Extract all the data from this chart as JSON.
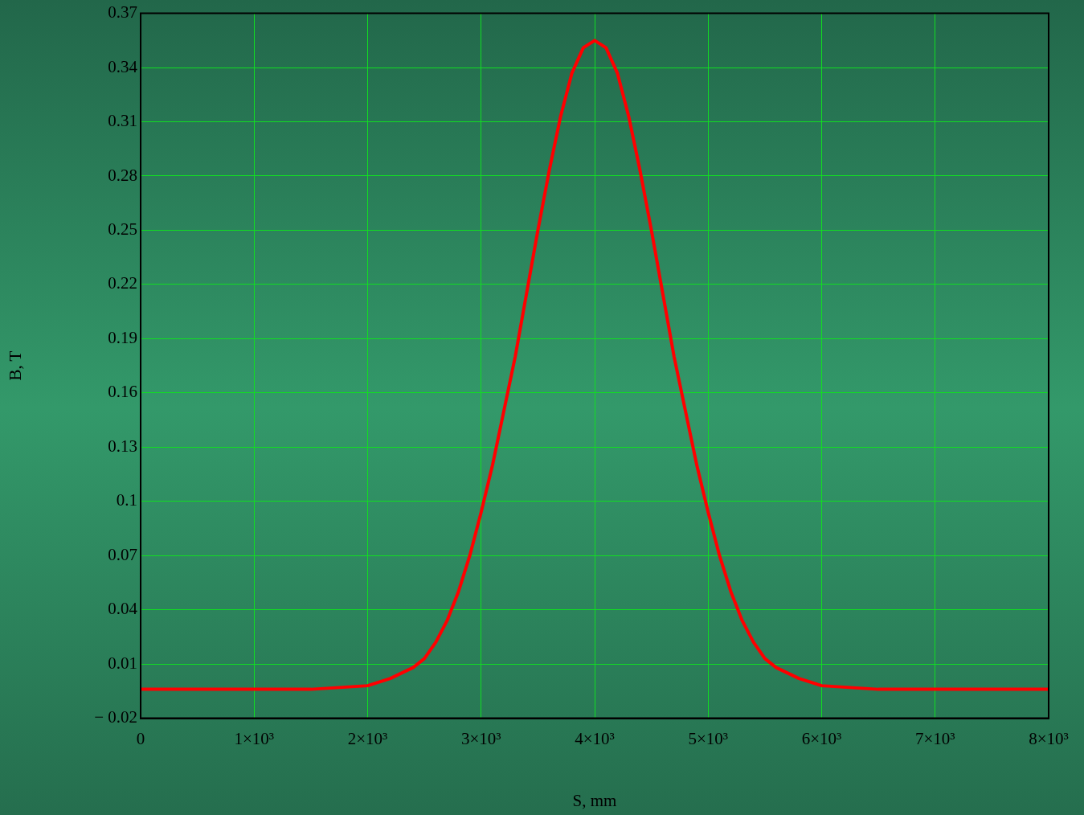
{
  "chart_data": {
    "type": "line",
    "xlabel": "S, mm",
    "ylabel": "B, T",
    "xlim": [
      0,
      8000
    ],
    "ylim": [
      -0.02,
      0.37
    ],
    "xticks": [
      0,
      {
        "value": 1000,
        "label": "1×10³"
      },
      {
        "value": 2000,
        "label": "2×10³"
      },
      {
        "value": 3000,
        "label": "3×10³"
      },
      {
        "value": 4000,
        "label": "4×10³"
      },
      {
        "value": 5000,
        "label": "5×10³"
      },
      {
        "value": 6000,
        "label": "6×10³"
      },
      {
        "value": 7000,
        "label": "7×10³"
      },
      {
        "value": 8000,
        "label": "8×10³"
      }
    ],
    "yticks": [
      {
        "value": -0.02,
        "label": "− 0.02"
      },
      0.01,
      0.04,
      0.07,
      0.1,
      0.13,
      0.16,
      0.19,
      0.22,
      0.25,
      0.28,
      0.31,
      0.34,
      0.37
    ],
    "grid": true,
    "legend": false,
    "marker": "none",
    "line_style": "solid",
    "series": [
      {
        "color": "#ff0000",
        "x": [
          0,
          1000,
          1500,
          2000,
          2200,
          2400,
          2500,
          2600,
          2700,
          2800,
          2900,
          3000,
          3100,
          3200,
          3300,
          3400,
          3500,
          3600,
          3700,
          3800,
          3900,
          4000,
          4100,
          4200,
          4300,
          4400,
          4500,
          4600,
          4700,
          4800,
          4900,
          5000,
          5100,
          5200,
          5300,
          5400,
          5500,
          5600,
          5800,
          6000,
          6500,
          7000,
          8000
        ],
        "values": [
          -0.004,
          -0.004,
          -0.004,
          -0.002,
          0.002,
          0.008,
          0.013,
          0.022,
          0.034,
          0.05,
          0.07,
          0.094,
          0.12,
          0.15,
          0.18,
          0.215,
          0.25,
          0.283,
          0.313,
          0.337,
          0.351,
          0.355,
          0.351,
          0.337,
          0.313,
          0.283,
          0.25,
          0.215,
          0.18,
          0.15,
          0.12,
          0.094,
          0.07,
          0.05,
          0.034,
          0.022,
          0.013,
          0.008,
          0.002,
          -0.002,
          -0.004,
          -0.004,
          -0.004
        ]
      }
    ]
  }
}
